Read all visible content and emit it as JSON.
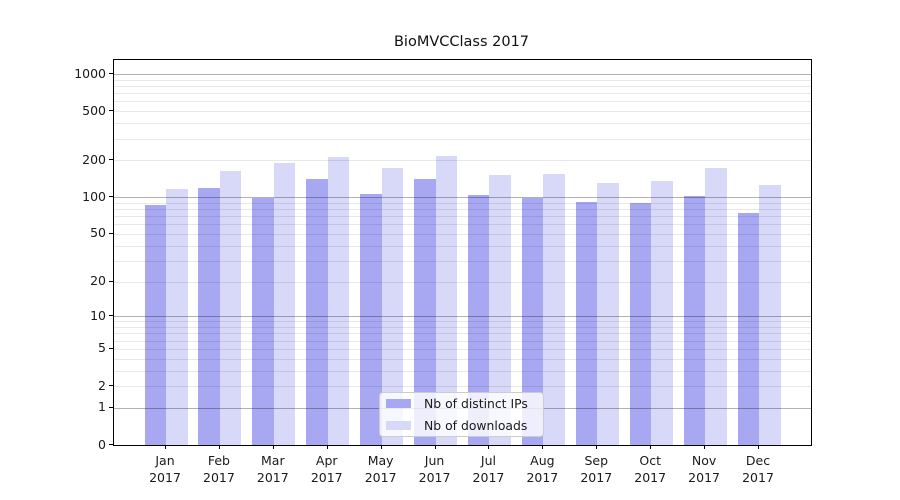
{
  "title": "BioMVCClass 2017",
  "chart_data": {
    "type": "bar",
    "title": "BioMVCClass 2017",
    "categories": [
      "Jan",
      "Feb",
      "Mar",
      "Apr",
      "May",
      "Jun",
      "Jul",
      "Aug",
      "Sep",
      "Oct",
      "Nov",
      "Dec"
    ],
    "year_label": "2017",
    "series": [
      {
        "name": "Nb of distinct IPs",
        "color": "#a8a8f2",
        "values": [
          86,
          120,
          98,
          142,
          107,
          142,
          104,
          99,
          91,
          90,
          102,
          74
        ]
      },
      {
        "name": "Nb of downloads",
        "color": "#d8d8f8",
        "values": [
          116,
          165,
          190,
          211,
          172,
          218,
          152,
          154,
          130,
          135,
          172,
          126
        ]
      }
    ],
    "xlabel": "",
    "ylabel": "",
    "yscale": "log1p",
    "ylim": [
      0,
      1300
    ],
    "yticks": [
      0,
      1,
      2,
      5,
      10,
      20,
      50,
      100,
      200,
      500,
      1000
    ],
    "grid": "on",
    "legend_position": "lower center"
  },
  "colors": {
    "major_grid": "#0000004d",
    "minor_grid": "#00000017",
    "frame": "#000000",
    "text": "#1a1a1a",
    "legend_border": "#cccccc",
    "legend_bg": "#ffffffcc"
  }
}
